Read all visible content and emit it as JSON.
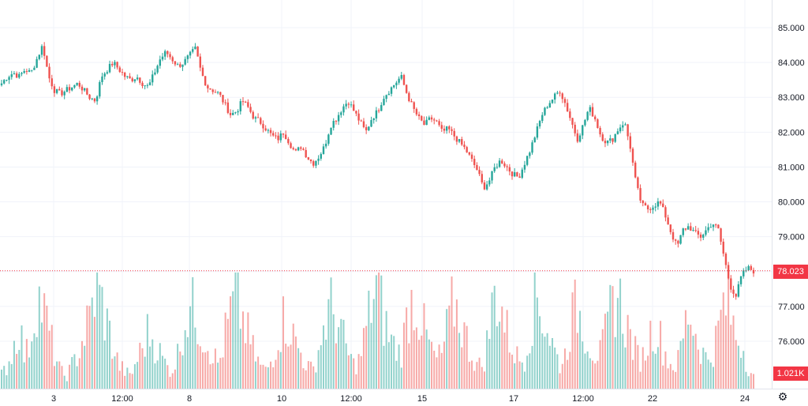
{
  "chart_data": {
    "type": "candlestick",
    "y_axis": {
      "ticks": [
        "85.000",
        "84.000",
        "83.000",
        "82.000",
        "81.000",
        "80.000",
        "79.000",
        "78.000",
        "77.000",
        "76.000"
      ],
      "range": [
        75.2,
        85.4
      ]
    },
    "x_axis": {
      "ticks": [
        "3",
        "12:00",
        "8",
        "10",
        "12:00",
        "15",
        "17",
        "12:00",
        "22",
        "24"
      ]
    },
    "last_price": "78.023",
    "last_volume": "1.021K",
    "grid": true,
    "colors": {
      "up": "#26a69a",
      "down": "#ef5350",
      "last": "#f23645",
      "grid": "#f0f3fa",
      "axis_text": "#131722"
    },
    "close_path": [
      83.4,
      83.6,
      83.7,
      83.6,
      83.8,
      83.7,
      84.1,
      84.5,
      83.6,
      83.2,
      83.1,
      83.2,
      83.3,
      83.4,
      83.2,
      83.0,
      82.9,
      83.6,
      83.8,
      84.0,
      83.8,
      83.6,
      83.5,
      83.6,
      83.4,
      83.3,
      83.7,
      84.1,
      84.3,
      84.1,
      83.9,
      84.0,
      84.2,
      84.4,
      83.7,
      83.3,
      83.2,
      83.1,
      82.8,
      82.5,
      82.6,
      82.9,
      82.7,
      82.4,
      82.3,
      82.1,
      81.9,
      81.8,
      82.0,
      81.7,
      81.4,
      81.6,
      81.3,
      81.1,
      81.3,
      81.6,
      82.2,
      82.4,
      82.7,
      82.9,
      82.6,
      82.3,
      82.0,
      82.4,
      82.6,
      83.0,
      83.2,
      83.4,
      83.6,
      83.1,
      82.7,
      82.4,
      82.2,
      82.4,
      82.3,
      82.0,
      82.1,
      81.9,
      81.7,
      81.5,
      81.2,
      80.9,
      80.4,
      80.6,
      81.0,
      81.2,
      81.0,
      80.8,
      80.7,
      81.1,
      81.5,
      82.0,
      82.5,
      82.8,
      83.0,
      83.2,
      82.8,
      82.3,
      81.8,
      82.2,
      82.7,
      82.4,
      81.9,
      81.7,
      81.8,
      82.1,
      82.3,
      81.6,
      80.5,
      79.9,
      79.8,
      79.9,
      80.0,
      79.6,
      79.1,
      78.7,
      79.2,
      79.3,
      79.1,
      79.0,
      79.2,
      79.4,
      79.2,
      78.4,
      77.6,
      77.3,
      77.9,
      78.1,
      78.02
    ],
    "volume_path": [
      0.12,
      0.2,
      0.35,
      0.55,
      0.25,
      0.45,
      0.8,
      0.7,
      0.5,
      0.3,
      0.15,
      0.1,
      0.2,
      0.3,
      0.45,
      0.6,
      0.85,
      0.75,
      0.55,
      0.35,
      0.2,
      0.15,
      0.1,
      0.25,
      0.35,
      0.5,
      0.4,
      0.3,
      0.2,
      0.15,
      0.3,
      0.55,
      0.7,
      0.65,
      0.5,
      0.4,
      0.3,
      0.2,
      0.45,
      0.65,
      0.8,
      0.6,
      0.45,
      0.3,
      0.2,
      0.15,
      0.25,
      0.45,
      0.6,
      0.55,
      0.4,
      0.3,
      0.2,
      0.15,
      0.35,
      0.55,
      0.7,
      0.6,
      0.45,
      0.3,
      0.2,
      0.25,
      0.5,
      0.75,
      0.9,
      0.6,
      0.45,
      0.35,
      0.3,
      0.6,
      0.8,
      0.65,
      0.5,
      0.35,
      0.25,
      0.3,
      0.55,
      0.75,
      0.6,
      0.45,
      0.3,
      0.2,
      0.2,
      0.5,
      0.85,
      0.7,
      0.5,
      0.35,
      0.25,
      0.25,
      0.55,
      0.8,
      0.65,
      0.5,
      0.35,
      0.2,
      0.3,
      0.6,
      0.7,
      0.55,
      0.4,
      0.3,
      0.3,
      0.5,
      0.75,
      0.8,
      0.6,
      0.45,
      0.3,
      0.25,
      0.4,
      0.55,
      0.45,
      0.3,
      0.2,
      0.2,
      0.45,
      0.7,
      0.5,
      0.35,
      0.25,
      0.3,
      0.5,
      0.75,
      0.65,
      0.45,
      0.4,
      0.2,
      0.1
    ]
  }
}
